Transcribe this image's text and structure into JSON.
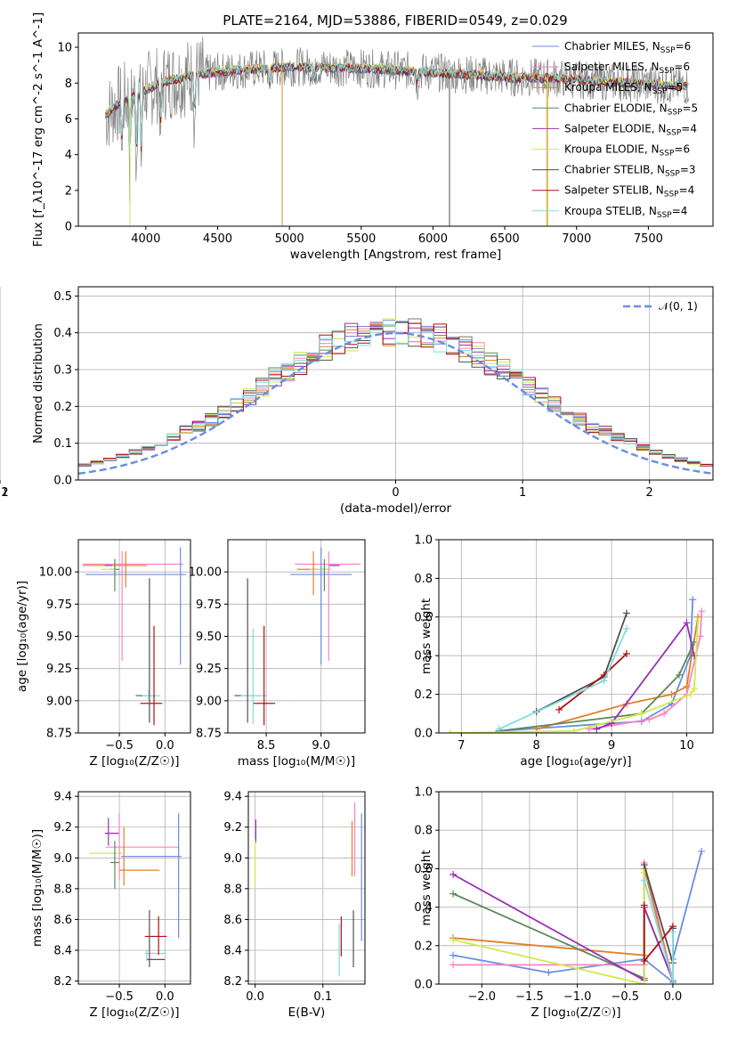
{
  "figure_title": "PLATE=2164, MJD=53886, FIBERID=0549, z=0.029",
  "colors": {
    "Chabrier MILES": "#6a8ee0",
    "Salpeter MILES": "#ff82c0",
    "Kroupa MILES": "#e0802a",
    "Chabrier ELODIE": "#5a8a5a",
    "Salpeter ELODIE": "#9a2fb4",
    "Kroupa ELODIE": "#cdea50",
    "Chabrier STELIB": "#505050",
    "Salpeter STELIB": "#b01010",
    "Kroupa STELIB": "#80dce0",
    "data": "#808080",
    "normal": "#6a8ee0"
  },
  "chart_data": [
    {
      "id": "spectrum",
      "type": "line",
      "title": "PLATE=2164, MJD=53886, FIBERID=0549, z=0.029",
      "xlabel": "wavelength [Angstrom, rest frame]",
      "ylabel": "Flux [f_λ10^-17 erg cm^-2 s^-1 A^-1]",
      "xlim": [
        3530,
        7950
      ],
      "ylim": [
        0,
        10.8
      ],
      "xticks": [
        "4000",
        "4500",
        "5000",
        "5500",
        "6000",
        "6500",
        "7000",
        "7500"
      ],
      "yticks": [
        "0",
        "2",
        "4",
        "6",
        "8",
        "10"
      ],
      "x_range_data": [
        3720,
        7780
      ],
      "continuum": {
        "x": [
          3720,
          3800,
          3900,
          4000,
          4100,
          4200,
          4400,
          4600,
          4800,
          5000,
          5200,
          5400,
          5600,
          5800,
          6000,
          6200,
          6400,
          6600,
          6800,
          7000,
          7200,
          7400,
          7600,
          7780
        ],
        "y": [
          6.2,
          6.8,
          7.2,
          7.6,
          8.0,
          8.2,
          8.5,
          8.7,
          8.8,
          8.9,
          8.9,
          8.85,
          8.8,
          8.7,
          8.6,
          8.5,
          8.4,
          8.3,
          8.3,
          8.2,
          8.1,
          8.0,
          7.9,
          7.8
        ]
      },
      "legend": [
        {
          "name": "Chabrier MILES",
          "nssp": "6"
        },
        {
          "name": "Salpeter MILES",
          "nssp": "6"
        },
        {
          "name": "Kroupa MILES",
          "nssp": "5"
        },
        {
          "name": "Chabrier ELODIE",
          "nssp": "5"
        },
        {
          "name": "Salpeter ELODIE",
          "nssp": "4"
        },
        {
          "name": "Kroupa ELODIE",
          "nssp": "6"
        },
        {
          "name": "Chabrier STELIB",
          "nssp": "3"
        },
        {
          "name": "Salpeter STELIB",
          "nssp": "4"
        },
        {
          "name": "Kroupa STELIB",
          "nssp": "4"
        }
      ]
    },
    {
      "id": "residuals",
      "type": "line",
      "xlabel": "(data-model)/error",
      "ylabel": "Normed distribution",
      "xlim": [
        -2.5,
        2.5
      ],
      "ylim": [
        0,
        0.525
      ],
      "xticks": [
        "−2",
        "−1",
        "0",
        "1",
        "2"
      ],
      "yticks": [
        "0.0",
        "0.1",
        "0.2",
        "0.3",
        "0.4",
        "0.5"
      ],
      "legend_label": "𝒩(0, 1)",
      "grid": true
    },
    {
      "id": "age_vs_Z",
      "type": "scatter",
      "xlabel": "Z [log₁₀(Z/Z☉)]",
      "ylabel": "age  [log₁₀(age/yr)]",
      "xlim": [
        -0.95,
        0.28
      ],
      "ylim": [
        8.75,
        10.25
      ],
      "xticks": [
        "−0.5",
        "0.0"
      ],
      "xtick_vals": [
        -0.5,
        0.0
      ],
      "yticks": [
        "8.75",
        "9.00",
        "9.25",
        "9.50",
        "9.75",
        "10.00"
      ],
      "ytick_vals": [
        8.75,
        9.0,
        9.25,
        9.5,
        9.75,
        10.0
      ],
      "points": [
        {
          "s": "Chabrier MILES",
          "x": -0.32,
          "xe": 0.55,
          "y": 9.98,
          "ye": 0.08
        },
        {
          "s": "Salpeter MILES",
          "x": -0.35,
          "xe": 0.55,
          "y": 10.06,
          "ye": 0.1
        },
        {
          "s": "Kroupa MILES",
          "x": -0.55,
          "xe": 0.35,
          "y": 10.05,
          "ye": 0.1
        },
        {
          "s": "Chabrier ELODIE",
          "x": -0.55,
          "xe": 0.05,
          "y": 10.02,
          "ye": 0.07
        },
        {
          "s": "Salpeter ELODIE",
          "x": -0.62,
          "xe": 0.04,
          "y": 10.05,
          "ye": 0.05
        },
        {
          "s": "Kroupa ELODIE",
          "x": -0.62,
          "xe": 0.08,
          "y": 10.02,
          "ye": 0.05
        },
        {
          "s": "Chabrier STELIB",
          "x": -0.2,
          "xe": 0.12,
          "y": 9.04,
          "ye": 0.0
        },
        {
          "s": "Salpeter STELIB",
          "x": -0.15,
          "xe": 0.12,
          "y": 8.98,
          "ye": 0.0
        },
        {
          "s": "Kroupa STELIB",
          "x": -0.15,
          "xe": 0.1,
          "y": 9.04,
          "ye": 0.0
        }
      ],
      "vbars": [
        {
          "s": "Chabrier MILES",
          "x": 0.17,
          "y0": 9.28,
          "y1": 10.19
        },
        {
          "s": "Salpeter MILES",
          "x": -0.47,
          "y0": 9.31,
          "y1": 10.16
        },
        {
          "s": "Kroupa MILES",
          "x": -0.43,
          "y0": 9.88,
          "y1": 10.16
        },
        {
          "s": "Chabrier ELODIE",
          "x": -0.55,
          "y0": 9.85,
          "y1": 10.1
        },
        {
          "s": "Chabrier STELIB",
          "x": -0.17,
          "y0": 8.83,
          "y1": 9.95
        },
        {
          "s": "Salpeter STELIB",
          "x": -0.12,
          "y0": 8.81,
          "y1": 9.58
        },
        {
          "s": "Kroupa STELIB",
          "x": -0.18,
          "y0": 9.0,
          "y1": 9.08
        }
      ]
    },
    {
      "id": "age_vs_mass",
      "type": "scatter",
      "xlabel": "mass [log₁₀(M/M☉)]",
      "ylabel": "",
      "xlim": [
        8.15,
        9.4
      ],
      "ylim": [
        8.75,
        10.25
      ],
      "xticks": [
        "8.5",
        "9.0"
      ],
      "xtick_vals": [
        8.5,
        9.0
      ],
      "yticks": [
        "8.75",
        "9.00",
        "9.25",
        "9.50",
        "9.75",
        "10.00"
      ],
      "ytick_vals": [
        8.75,
        9.0,
        9.25,
        9.5,
        9.75,
        10.0
      ],
      "points": [
        {
          "s": "Chabrier MILES",
          "x": 9.0,
          "xe": 0.28,
          "y": 9.98
        },
        {
          "s": "Salpeter MILES",
          "x": 9.06,
          "xe": 0.3,
          "y": 10.06
        },
        {
          "s": "Kroupa MILES",
          "x": 8.93,
          "xe": 0.15,
          "y": 10.02
        },
        {
          "s": "Chabrier ELODIE",
          "x": 8.99,
          "xe": 0.05,
          "y": 10.02
        },
        {
          "s": "Salpeter ELODIE",
          "x": 9.12,
          "xe": 0.05,
          "y": 10.05
        },
        {
          "s": "Kroupa ELODIE",
          "x": 9.0,
          "xe": 0.1,
          "y": 10.02
        },
        {
          "s": "Chabrier STELIB",
          "x": 8.35,
          "xe": 0.14,
          "y": 9.04
        },
        {
          "s": "Salpeter STELIB",
          "x": 8.48,
          "xe": 0.1,
          "y": 8.98
        },
        {
          "s": "Kroupa STELIB",
          "x": 8.39,
          "xe": 0.12,
          "y": 9.04
        }
      ],
      "vbars": [
        {
          "s": "Chabrier MILES",
          "x": 9.0,
          "y0": 9.28,
          "y1": 10.19
        },
        {
          "s": "Salpeter MILES",
          "x": 9.07,
          "y0": 9.31,
          "y1": 10.16
        },
        {
          "s": "Kroupa MILES",
          "x": 8.93,
          "y0": 9.82,
          "y1": 10.16
        },
        {
          "s": "Chabrier ELODIE",
          "x": 9.03,
          "y0": 9.85,
          "y1": 10.1
        },
        {
          "s": "Chabrier STELIB",
          "x": 8.33,
          "y0": 8.83,
          "y1": 9.95
        },
        {
          "s": "Salpeter STELIB",
          "x": 8.48,
          "y0": 8.81,
          "y1": 9.58
        },
        {
          "s": "Kroupa STELIB",
          "x": 8.38,
          "y0": 8.82,
          "y1": 9.56
        }
      ]
    },
    {
      "id": "weight_vs_age",
      "type": "line",
      "xlabel": "age  [log₁₀(age/yr)]",
      "ylabel": "mass weight",
      "xlim": [
        6.7,
        10.35
      ],
      "ylim": [
        0,
        1.0
      ],
      "xticks": [
        "7",
        "8",
        "9",
        "10"
      ],
      "xtick_vals": [
        7,
        8,
        9,
        10
      ],
      "yticks": [
        "0.0",
        "0.2",
        "0.4",
        "0.6",
        "0.8",
        "1.0"
      ],
      "ytick_vals": [
        0,
        0.2,
        0.4,
        0.6,
        0.8,
        1.0
      ],
      "series": [
        {
          "name": "Chabrier MILES",
          "x": [
            7.5,
            9.0,
            9.4,
            9.8,
            10.05,
            10.08
          ],
          "y": [
            0.01,
            0.05,
            0.06,
            0.15,
            0.4,
            0.69
          ]
        },
        {
          "name": "Salpeter MILES",
          "x": [
            8.7,
            9.5,
            9.7,
            10.0,
            10.18,
            10.2
          ],
          "y": [
            0.02,
            0.07,
            0.1,
            0.2,
            0.5,
            0.63
          ]
        },
        {
          "name": "Kroupa MILES",
          "x": [
            8.0,
            9.2,
            9.8,
            10.0,
            10.15
          ],
          "y": [
            0.02,
            0.15,
            0.2,
            0.24,
            0.6
          ]
        },
        {
          "name": "Chabrier ELODIE",
          "x": [
            7.5,
            9.4,
            9.9,
            10.1
          ],
          "y": [
            0.01,
            0.1,
            0.3,
            0.47
          ]
        },
        {
          "name": "Salpeter ELODIE",
          "x": [
            8.8,
            9.0,
            10.0,
            10.1
          ],
          "y": [
            0.02,
            0.05,
            0.57,
            0.4
          ]
        },
        {
          "name": "Kroupa ELODIE",
          "x": [
            6.85,
            8.5,
            9.4,
            10.05,
            10.1,
            10.15
          ],
          "y": [
            0.0,
            0.01,
            0.1,
            0.2,
            0.23,
            0.58
          ]
        },
        {
          "name": "Chabrier STELIB",
          "x": [
            8.0,
            8.9,
            9.2
          ],
          "y": [
            0.11,
            0.29,
            0.62
          ]
        },
        {
          "name": "Salpeter STELIB",
          "x": [
            8.3,
            8.9,
            9.2
          ],
          "y": [
            0.12,
            0.3,
            0.41
          ]
        },
        {
          "name": "Kroupa STELIB",
          "x": [
            7.5,
            8.9,
            9.2
          ],
          "y": [
            0.02,
            0.27,
            0.54
          ]
        }
      ]
    },
    {
      "id": "mass_vs_Z",
      "type": "scatter",
      "xlabel": "Z [log₁₀(Z/Z☉)]",
      "ylabel": "mass [log₁₀(M/M☉)]",
      "xlim": [
        -0.95,
        0.28
      ],
      "ylim": [
        8.18,
        9.43
      ],
      "xticks": [
        "−0.5",
        "0.0"
      ],
      "xtick_vals": [
        -0.5,
        0.0
      ],
      "yticks": [
        "8.2",
        "8.4",
        "8.6",
        "8.8",
        "9.0",
        "9.2",
        "9.4"
      ],
      "ytick_vals": [
        8.2,
        8.4,
        8.6,
        8.8,
        9.0,
        9.2,
        9.4
      ],
      "points": [
        {
          "s": "Chabrier MILES",
          "x": -0.15,
          "xe": 0.33,
          "y": 9.01
        },
        {
          "s": "Salpeter MILES",
          "x": -0.25,
          "xe": 0.4,
          "y": 9.07
        },
        {
          "s": "Kroupa MILES",
          "x": -0.28,
          "xe": 0.22,
          "y": 8.92
        },
        {
          "s": "Chabrier ELODIE",
          "x": -0.55,
          "xe": 0.05,
          "y": 8.97
        },
        {
          "s": "Salpeter ELODIE",
          "x": -0.58,
          "xe": 0.08,
          "y": 9.16
        },
        {
          "s": "Kroupa ELODIE",
          "x": -0.65,
          "xe": 0.18,
          "y": 9.03
        },
        {
          "s": "Chabrier STELIB",
          "x": -0.1,
          "xe": 0.1,
          "y": 8.34
        },
        {
          "s": "Salpeter STELIB",
          "x": -0.1,
          "xe": 0.12,
          "y": 8.49
        },
        {
          "s": "Kroupa STELIB",
          "x": -0.1,
          "xe": 0.12,
          "y": 8.38
        }
      ],
      "vbars": [
        {
          "s": "Chabrier MILES",
          "x": 0.15,
          "y0": 8.48,
          "y1": 9.29
        },
        {
          "s": "Salpeter MILES",
          "x": -0.5,
          "y0": 8.86,
          "y1": 9.29
        },
        {
          "s": "Kroupa MILES",
          "x": -0.45,
          "y0": 8.82,
          "y1": 9.2
        },
        {
          "s": "Chabrier ELODIE",
          "x": -0.55,
          "y0": 8.8,
          "y1": 9.11
        },
        {
          "s": "Salpeter ELODIE",
          "x": -0.62,
          "y0": 9.08,
          "y1": 9.26
        },
        {
          "s": "Chabrier STELIB",
          "x": -0.17,
          "y0": 8.29,
          "y1": 8.66
        },
        {
          "s": "Salpeter STELIB",
          "x": -0.07,
          "y0": 8.37,
          "y1": 8.62
        },
        {
          "s": "Kroupa STELIB",
          "x": -0.2,
          "y0": 8.33,
          "y1": 8.4
        }
      ]
    },
    {
      "id": "mass_vs_ebv",
      "type": "scatter",
      "xlabel": "E(B-V)",
      "ylabel": "",
      "xlim": [
        -0.01,
        0.162
      ],
      "ylim": [
        8.18,
        9.43
      ],
      "xticks": [
        "0.0",
        "0.1"
      ],
      "xtick_vals": [
        0.0,
        0.1
      ],
      "yticks": [
        "8.2",
        "8.4",
        "8.6",
        "8.8",
        "9.0",
        "9.2",
        "9.4"
      ],
      "ytick_vals": [
        8.2,
        8.4,
        8.6,
        8.8,
        9.0,
        9.2,
        9.4
      ],
      "vbars": [
        {
          "s": "Salpeter ELODIE",
          "x": 0.001,
          "y0": 9.1,
          "y1": 9.25
        },
        {
          "s": "Kroupa ELODIE",
          "x": 0.0,
          "y0": 8.8,
          "y1": 9.12
        },
        {
          "s": "Salpeter MILES",
          "x": 0.147,
          "y0": 8.88,
          "y1": 9.36
        },
        {
          "s": "Kroupa MILES",
          "x": 0.143,
          "y0": 8.88,
          "y1": 9.24
        },
        {
          "s": "Chabrier MILES",
          "x": 0.157,
          "y0": 8.46,
          "y1": 9.29
        },
        {
          "s": "Salpeter STELIB",
          "x": 0.127,
          "y0": 8.36,
          "y1": 8.62
        },
        {
          "s": "Kroupa STELIB",
          "x": 0.124,
          "y0": 8.23,
          "y1": 8.57
        },
        {
          "s": "Chabrier STELIB",
          "x": 0.145,
          "y0": 8.29,
          "y1": 8.66
        }
      ]
    },
    {
      "id": "weight_vs_Z",
      "type": "line",
      "xlabel": "Z [log₁₀(Z/Z☉)]",
      "ylabel": "mass weight",
      "xlim": [
        -2.45,
        0.42
      ],
      "ylim": [
        0,
        1.0
      ],
      "xticks": [
        "−2.0",
        "−1.5",
        "−1.0",
        "−0.5",
        "0.0"
      ],
      "xtick_vals": [
        -2.0,
        -1.5,
        -1.0,
        -0.5,
        0.0
      ],
      "yticks": [
        "0.0",
        "0.2",
        "0.4",
        "0.6",
        "0.8",
        "1.0"
      ],
      "ytick_vals": [
        0,
        0.2,
        0.4,
        0.6,
        0.8,
        1.0
      ],
      "series": [
        {
          "name": "Chabrier MILES",
          "x": [
            -2.3,
            -1.3,
            -0.3,
            0.0,
            0.0,
            0.3
          ],
          "y": [
            0.15,
            0.06,
            0.13,
            0.01,
            0.13,
            0.69
          ]
        },
        {
          "name": "Salpeter MILES",
          "x": [
            -2.3,
            -0.3,
            -0.3,
            0.0,
            0.0
          ],
          "y": [
            0.1,
            0.1,
            0.63,
            0.02,
            0.3
          ]
        },
        {
          "name": "Kroupa MILES",
          "x": [
            -2.3,
            -0.3,
            -0.3,
            0.0
          ],
          "y": [
            0.24,
            0.15,
            0.6,
            0.02
          ]
        },
        {
          "name": "Chabrier ELODIE",
          "x": [
            -2.3,
            -0.3,
            -0.3,
            0.0
          ],
          "y": [
            0.47,
            0.03,
            0.4,
            0.02
          ]
        },
        {
          "name": "Salpeter ELODIE",
          "x": [
            -2.3,
            -0.3,
            -0.3,
            0.0
          ],
          "y": [
            0.57,
            0.02,
            0.4,
            0.02
          ]
        },
        {
          "name": "Kroupa ELODIE",
          "x": [
            -2.3,
            -0.3,
            -0.3,
            -0.3
          ],
          "y": [
            0.23,
            0.0,
            0.58,
            0.2
          ]
        },
        {
          "name": "Chabrier STELIB",
          "x": [
            -0.3,
            0.0,
            0.0
          ],
          "y": [
            0.62,
            0.11,
            0.29
          ]
        },
        {
          "name": "Salpeter STELIB",
          "x": [
            -0.3,
            -0.3,
            0.0
          ],
          "y": [
            0.41,
            0.12,
            0.3
          ]
        },
        {
          "name": "Kroupa STELIB",
          "x": [
            -0.3,
            0.0,
            0.0
          ],
          "y": [
            0.54,
            0.02,
            0.27
          ]
        }
      ]
    }
  ]
}
